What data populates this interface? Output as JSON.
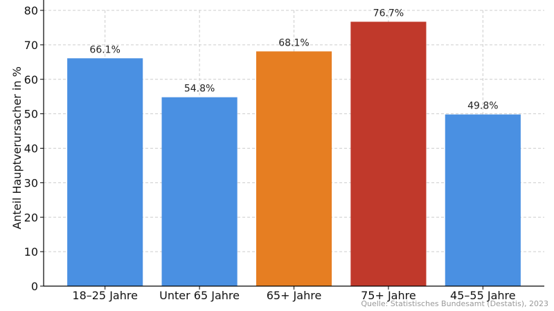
{
  "chart_data": {
    "type": "bar",
    "categories": [
      "18–25 Jahre",
      "Unter 65 Jahre",
      "65+ Jahre",
      "75+ Jahre",
      "45–55 Jahre"
    ],
    "values": [
      66.1,
      54.8,
      68.1,
      76.7,
      49.8
    ],
    "value_labels": [
      "66.1%",
      "54.8%",
      "68.1%",
      "76.7%",
      "49.8%"
    ],
    "colors": [
      "#4a90e2",
      "#4a90e2",
      "#e67e22",
      "#c0392b",
      "#4a90e2"
    ],
    "ylabel": "Anteil Hauptverursacher in %",
    "ylim": [
      0,
      80
    ],
    "yticks": [
      0,
      10,
      20,
      30,
      40,
      50,
      60,
      70,
      80
    ],
    "grid": true
  },
  "source": "Quelle: Statistisches Bundesamt (Destatis), 2023"
}
